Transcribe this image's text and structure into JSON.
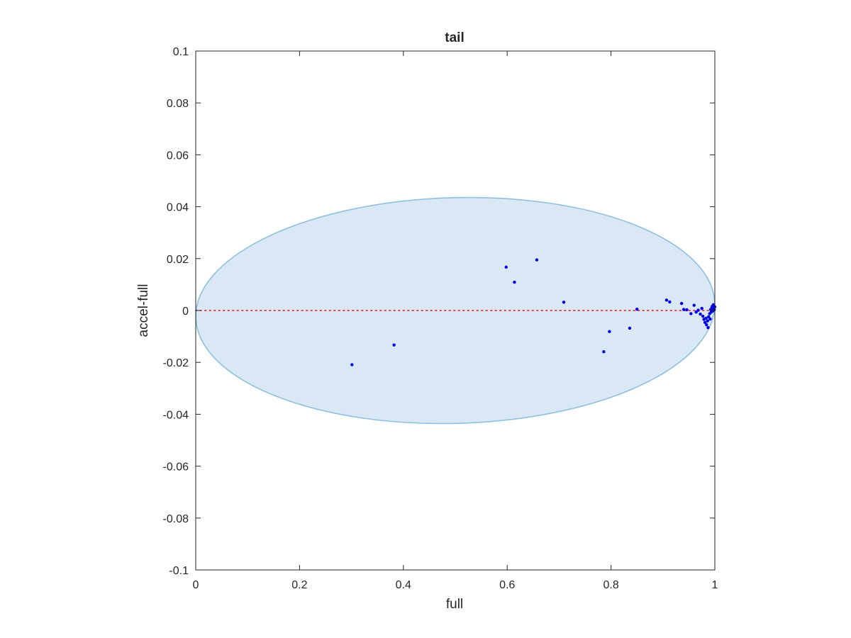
{
  "chart_data": {
    "type": "scatter",
    "title": "tail",
    "xlabel": "full",
    "ylabel": "accel-full",
    "xlim": [
      0,
      1
    ],
    "ylim": [
      -0.1,
      0.1
    ],
    "xticks": [
      0,
      0.2,
      0.4,
      0.6,
      0.8,
      1
    ],
    "xtick_labels": [
      "0",
      "0.2",
      "0.4",
      "0.6",
      "0.8",
      "1"
    ],
    "yticks": [
      -0.1,
      -0.08,
      -0.06,
      -0.04,
      -0.02,
      0,
      0.02,
      0.04,
      0.06,
      0.08,
      0.1
    ],
    "ytick_labels": [
      "-0.1",
      "-0.08",
      "-0.06",
      "-0.04",
      "-0.02",
      "0",
      "0.02",
      "0.04",
      "0.06",
      "0.08",
      "0.1"
    ],
    "grid": false,
    "colors": {
      "points": "#0000e6",
      "ellipse_fill": "#d9e8f4",
      "ellipse_edge": "#8fc0e0",
      "zero_line": "#ee2222",
      "axes": "#262626"
    },
    "ellipse": {
      "center": [
        0.5,
        0
      ],
      "x_semi_axis": 0.5,
      "y_semi_axis": 0.0435,
      "rotation_deg": -1.6
    },
    "zero_line": {
      "y": 0,
      "style": "dotted"
    },
    "series": [
      {
        "points": [
          [
            0.301,
            -0.0209
          ],
          [
            0.382,
            -0.0133
          ],
          [
            0.598,
            0.0167
          ],
          [
            0.614,
            0.0109
          ],
          [
            0.657,
            0.0195
          ],
          [
            0.709,
            0.0032
          ],
          [
            0.786,
            -0.0159
          ],
          [
            0.797,
            -0.0081
          ],
          [
            0.836,
            -0.0068
          ],
          [
            0.85,
            0.0005
          ],
          [
            0.907,
            0.004
          ],
          [
            0.913,
            0.0033
          ],
          [
            0.936,
            0.0027
          ],
          [
            0.94,
            0.0004
          ],
          [
            0.946,
            0.0003
          ],
          [
            0.954,
            -0.0012
          ],
          [
            0.96,
            0.002
          ],
          [
            0.964,
            -0.0006
          ],
          [
            0.968,
            0.0001
          ],
          [
            0.972,
            -0.0014
          ],
          [
            0.975,
            0.0008
          ],
          [
            0.977,
            -0.0022
          ],
          [
            0.979,
            -0.0034
          ],
          [
            0.981,
            -0.0046
          ],
          [
            0.983,
            -0.003
          ],
          [
            0.984,
            -0.0055
          ],
          [
            0.986,
            -0.004
          ],
          [
            0.987,
            -0.0066
          ],
          [
            0.988,
            -0.0024
          ],
          [
            0.99,
            -0.0012
          ],
          [
            0.991,
            -0.0033
          ],
          [
            0.992,
            0.0004
          ],
          [
            0.993,
            -0.0006
          ],
          [
            0.994,
            0.001
          ],
          [
            0.995,
            0.0016
          ],
          [
            0.996,
            -0.0002
          ],
          [
            0.997,
            0.0022
          ],
          [
            0.998,
            0.0008
          ],
          [
            0.999,
            0.0003
          ],
          [
            1.0,
            0.0014
          ]
        ]
      }
    ]
  }
}
